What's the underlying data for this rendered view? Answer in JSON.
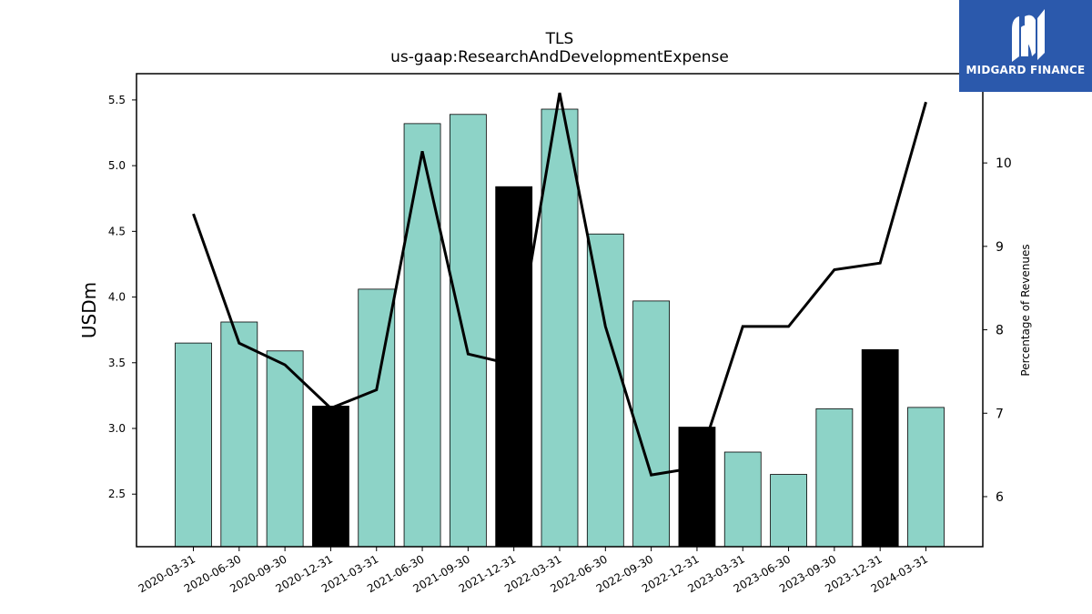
{
  "chart_data": {
    "type": "bar",
    "title": "TLS",
    "subtitle": "us-gaap:ResearchAndDevelopmentExpense",
    "ylabel": "USDm",
    "y2label": "Percentage of Revenues",
    "categories": [
      "2020-03-31",
      "2020-06-30",
      "2020-09-30",
      "2020-12-31",
      "2021-03-31",
      "2021-06-30",
      "2021-09-30",
      "2021-12-31",
      "2022-03-31",
      "2022-06-30",
      "2022-09-30",
      "2022-12-31",
      "2023-03-31",
      "2023-06-30",
      "2023-09-30",
      "2023-12-31",
      "2024-03-31"
    ],
    "series": [
      {
        "type": "bar",
        "values": [
          3.65,
          3.81,
          3.59,
          3.17,
          4.06,
          5.32,
          5.39,
          4.84,
          5.43,
          4.48,
          3.97,
          3.01,
          2.82,
          2.65,
          3.15,
          3.6,
          3.16
        ],
        "highlight": [
          false,
          false,
          false,
          true,
          false,
          false,
          false,
          true,
          false,
          false,
          false,
          true,
          false,
          false,
          false,
          true,
          false
        ]
      },
      {
        "type": "line",
        "axis": "right",
        "values": [
          9.39,
          7.84,
          7.58,
          7.06,
          7.28,
          10.14,
          7.71,
          7.58,
          10.84,
          8.04,
          6.26,
          6.35,
          8.04,
          8.04,
          8.72,
          8.8,
          10.73
        ]
      }
    ],
    "ylim": [
      2.1,
      5.7
    ],
    "yticks": [
      "2.5",
      "3.0",
      "3.5",
      "4.0",
      "4.5",
      "5.0",
      "5.5"
    ],
    "y2lim": [
      5.4,
      11.07
    ],
    "y2ticks": [
      "6",
      "7",
      "8",
      "9",
      "10"
    ],
    "colors": {
      "bar": "#8dd3c7",
      "bar_highlight": "#000000",
      "line": "#000000",
      "edge": "#000000"
    },
    "grid": false,
    "legend": "none"
  },
  "logo": {
    "text": "MIDGARD FINANCE",
    "background": "#2b59ac"
  }
}
